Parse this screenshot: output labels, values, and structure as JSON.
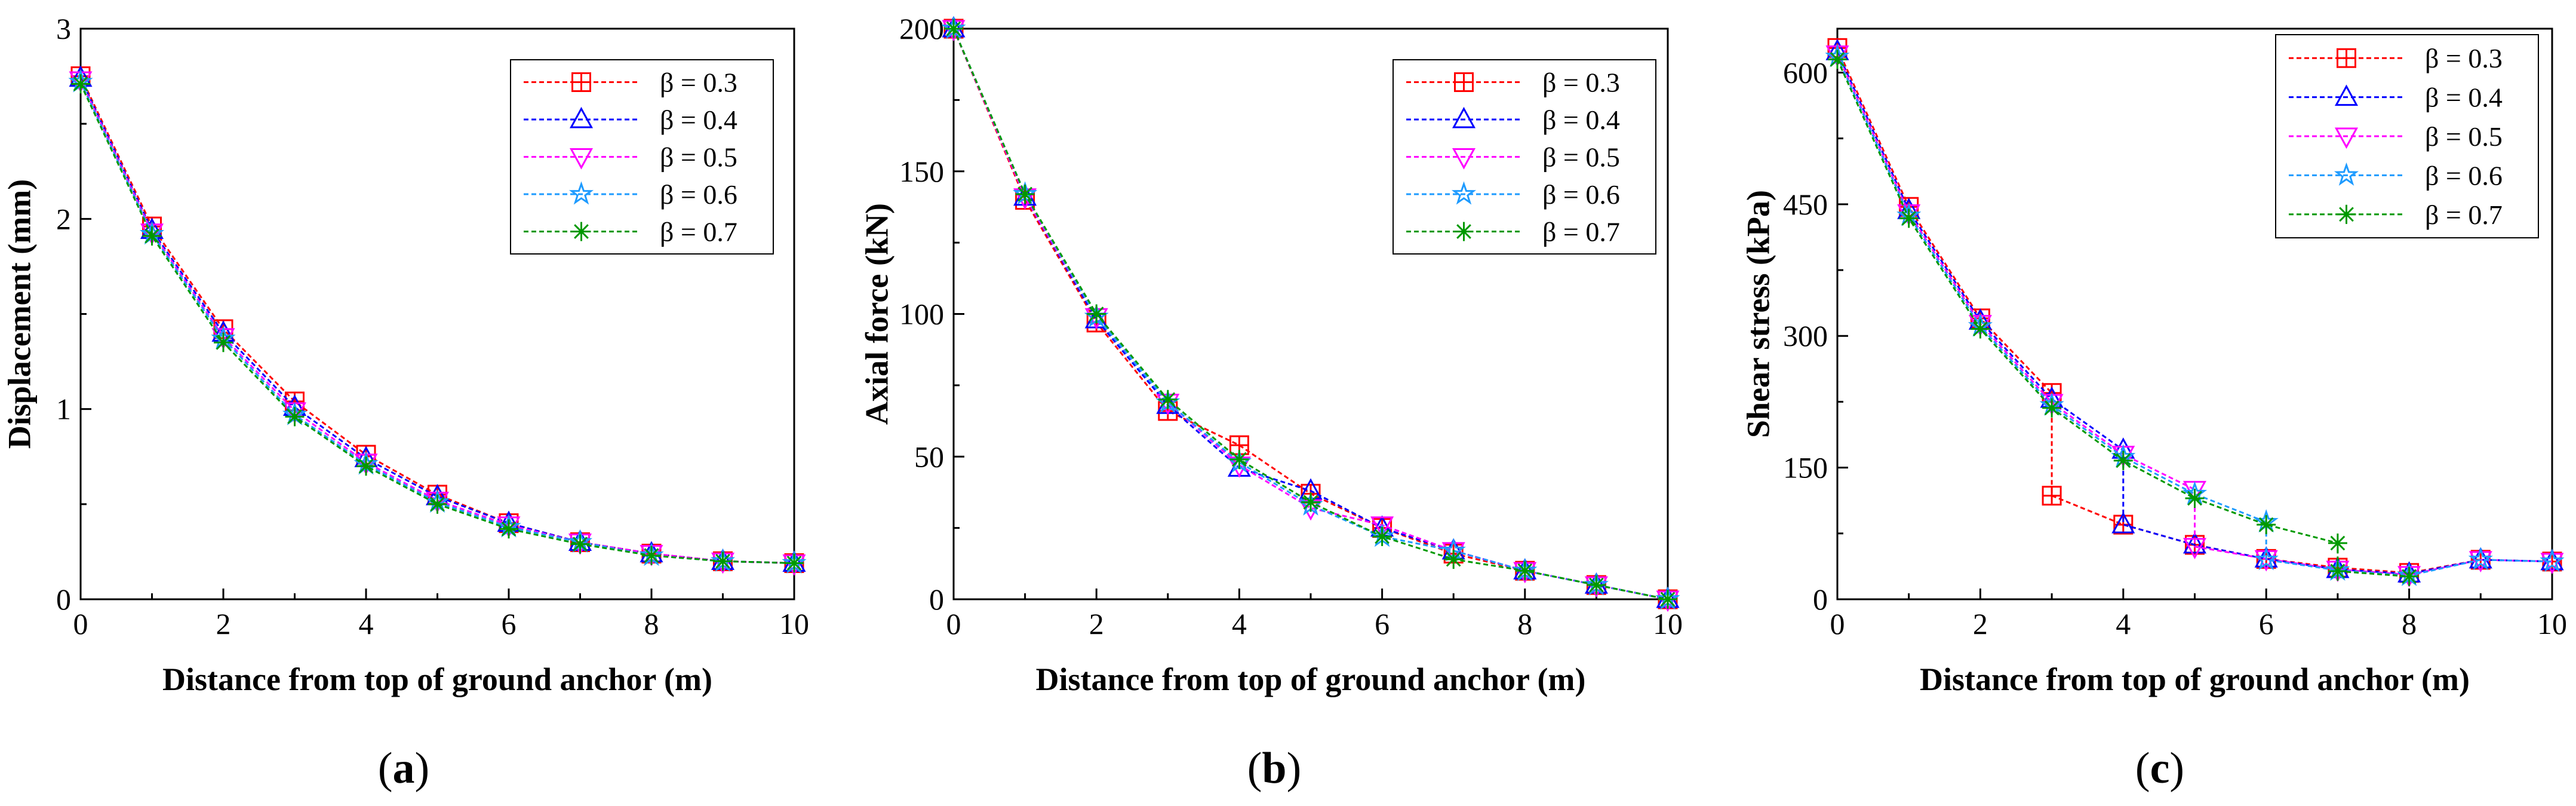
{
  "chart_data": [
    {
      "type": "line",
      "caption_open": "(",
      "caption_letter": "a",
      "caption_close": ")",
      "xlabel": "Distance from top of ground anchor (m)",
      "ylabel": "Displacement (mm)",
      "xlim": [
        0,
        10
      ],
      "ylim": [
        0,
        3
      ],
      "xticks": [
        0,
        2,
        4,
        6,
        8,
        10
      ],
      "xtick_labels": [
        "0",
        "2",
        "4",
        "6",
        "8",
        "10"
      ],
      "yticks": [
        0,
        1,
        2,
        3
      ],
      "ytick_labels": [
        "0",
        "1",
        "2",
        "3"
      ],
      "legend_position": "top-right",
      "series": [
        {
          "name": "β = 0.3",
          "color": "#ff0000",
          "marker": "square-plus",
          "points": [
            [
              0,
              2.75
            ],
            [
              1,
              1.96
            ],
            [
              2,
              1.42
            ],
            [
              3,
              1.04
            ],
            [
              4,
              0.76
            ],
            [
              5,
              0.55
            ],
            [
              6,
              0.4
            ],
            [
              7,
              0.3
            ],
            [
              8,
              0.24
            ],
            [
              9,
              0.2
            ],
            [
              10,
              0.19
            ]
          ]
        },
        {
          "name": "β = 0.4",
          "color": "#0000ff",
          "marker": "triangle-up",
          "points": [
            [
              0,
              2.74
            ],
            [
              1,
              1.94
            ],
            [
              2,
              1.4
            ],
            [
              3,
              1.01
            ],
            [
              4,
              0.74
            ],
            [
              5,
              0.54
            ],
            [
              6,
              0.4
            ],
            [
              7,
              0.3
            ],
            [
              8,
              0.24
            ],
            [
              9,
              0.2
            ],
            [
              10,
              0.19
            ]
          ]
        },
        {
          "name": "β = 0.5",
          "color": "#ff00ff",
          "marker": "triangle-down",
          "points": [
            [
              0,
              2.73
            ],
            [
              1,
              1.93
            ],
            [
              2,
              1.38
            ],
            [
              3,
              0.99
            ],
            [
              4,
              0.72
            ],
            [
              5,
              0.52
            ],
            [
              6,
              0.39
            ],
            [
              7,
              0.3
            ],
            [
              8,
              0.24
            ],
            [
              9,
              0.2
            ],
            [
              10,
              0.19
            ]
          ]
        },
        {
          "name": "β = 0.6",
          "color": "#1e9bff",
          "marker": "star",
          "points": [
            [
              0,
              2.72
            ],
            [
              1,
              1.92
            ],
            [
              2,
              1.37
            ],
            [
              3,
              0.97
            ],
            [
              4,
              0.71
            ],
            [
              5,
              0.51
            ],
            [
              6,
              0.38
            ],
            [
              7,
              0.3
            ],
            [
              8,
              0.23
            ],
            [
              9,
              0.2
            ],
            [
              10,
              0.19
            ]
          ]
        },
        {
          "name": "β = 0.7",
          "color": "#009900",
          "marker": "asterisk",
          "points": [
            [
              0,
              2.71
            ],
            [
              1,
              1.91
            ],
            [
              2,
              1.35
            ],
            [
              3,
              0.96
            ],
            [
              4,
              0.7
            ],
            [
              5,
              0.5
            ],
            [
              6,
              0.37
            ],
            [
              7,
              0.29
            ],
            [
              8,
              0.23
            ],
            [
              9,
              0.2
            ],
            [
              10,
              0.19
            ]
          ]
        }
      ]
    },
    {
      "type": "line",
      "caption_open": "(",
      "caption_letter": "b",
      "caption_close": ")",
      "xlabel": "Distance from top of ground anchor (m)",
      "ylabel": "Axial force (kN)",
      "xlim": [
        0,
        10
      ],
      "ylim": [
        0,
        200
      ],
      "xticks": [
        0,
        2,
        4,
        6,
        8,
        10
      ],
      "xtick_labels": [
        "0",
        "2",
        "4",
        "6",
        "8",
        "10"
      ],
      "yticks": [
        0,
        50,
        100,
        150,
        200
      ],
      "ytick_labels": [
        "0",
        "50",
        "100",
        "150",
        "200"
      ],
      "legend_position": "top-right",
      "series": [
        {
          "name": "β = 0.3",
          "color": "#ff0000",
          "marker": "square-plus",
          "points": [
            [
              0,
              200
            ],
            [
              1,
              140
            ],
            [
              2,
              97
            ],
            [
              3,
              66
            ],
            [
              4,
              54
            ],
            [
              5,
              37
            ],
            [
              6,
              25
            ],
            [
              7,
              16
            ],
            [
              8,
              10
            ],
            [
              9,
              5
            ],
            [
              10,
              0
            ]
          ]
        },
        {
          "name": "β = 0.4",
          "color": "#0000ff",
          "marker": "triangle-up",
          "points": [
            [
              0,
              200
            ],
            [
              1,
              141
            ],
            [
              2,
              98
            ],
            [
              3,
              68
            ],
            [
              4,
              46
            ],
            [
              5,
              38
            ],
            [
              6,
              25
            ],
            [
              7,
              17
            ],
            [
              8,
              10
            ],
            [
              9,
              5
            ],
            [
              10,
              0
            ]
          ]
        },
        {
          "name": "β = 0.5",
          "color": "#ff00ff",
          "marker": "triangle-down",
          "points": [
            [
              0,
              200
            ],
            [
              1,
              141
            ],
            [
              2,
              99
            ],
            [
              3,
              69
            ],
            [
              4,
              47
            ],
            [
              5,
              32
            ],
            [
              6,
              26
            ],
            [
              7,
              17
            ],
            [
              8,
              10
            ],
            [
              9,
              5
            ],
            [
              10,
              0
            ]
          ]
        },
        {
          "name": "β = 0.6",
          "color": "#1e9bff",
          "marker": "star",
          "points": [
            [
              0,
              200
            ],
            [
              1,
              142
            ],
            [
              2,
              99
            ],
            [
              3,
              69
            ],
            [
              4,
              48
            ],
            [
              5,
              33
            ],
            [
              6,
              22
            ],
            [
              7,
              17
            ],
            [
              8,
              10
            ],
            [
              9,
              5
            ],
            [
              10,
              0
            ]
          ]
        },
        {
          "name": "β = 0.7",
          "color": "#009900",
          "marker": "asterisk",
          "points": [
            [
              0,
              200
            ],
            [
              1,
              142
            ],
            [
              2,
              100
            ],
            [
              3,
              70
            ],
            [
              4,
              49
            ],
            [
              5,
              34
            ],
            [
              6,
              22
            ],
            [
              7,
              14
            ],
            [
              8,
              10
            ],
            [
              9,
              5
            ],
            [
              10,
              0
            ]
          ]
        }
      ]
    },
    {
      "type": "line",
      "caption_open": "(",
      "caption_letter": "c",
      "caption_close": ")",
      "xlabel": "Distance from top of ground anchor (m)",
      "ylabel": "Shear stress (kPa)",
      "xlim": [
        0,
        10
      ],
      "ylim": [
        0,
        650
      ],
      "xticks": [
        0,
        2,
        4,
        6,
        8,
        10
      ],
      "xtick_labels": [
        "0",
        "2",
        "4",
        "6",
        "8",
        "10"
      ],
      "yticks": [
        0,
        150,
        300,
        450,
        600
      ],
      "ytick_labels": [
        "0",
        "150",
        "300",
        "450",
        "600"
      ],
      "legend_position": "top-right",
      "series": [
        {
          "name": "β = 0.3",
          "color": "#ff0000",
          "marker": "square-plus",
          "points": [
            [
              0,
              628
            ],
            [
              1,
              447
            ],
            [
              2,
              320
            ],
            [
              3,
              235
            ],
            [
              3,
              118
            ],
            [
              4,
              85
            ],
            [
              5,
              62
            ],
            [
              6,
              46
            ],
            [
              7,
              36
            ],
            [
              8,
              30
            ],
            [
              9,
              45
            ],
            [
              10,
              43
            ]
          ]
        },
        {
          "name": "β = 0.4",
          "color": "#0000ff",
          "marker": "triangle-up",
          "points": [
            [
              0,
              624
            ],
            [
              1,
              443
            ],
            [
              2,
              317
            ],
            [
              3,
              228
            ],
            [
              4,
              170
            ],
            [
              4,
              85
            ],
            [
              5,
              62
            ],
            [
              6,
              46
            ],
            [
              7,
              34
            ],
            [
              8,
              29
            ],
            [
              9,
              45
            ],
            [
              10,
              43
            ]
          ]
        },
        {
          "name": "β = 0.5",
          "color": "#ff00ff",
          "marker": "triangle-down",
          "points": [
            [
              0,
              621
            ],
            [
              1,
              440
            ],
            [
              2,
              314
            ],
            [
              3,
              224
            ],
            [
              4,
              165
            ],
            [
              5,
              125
            ],
            [
              5,
              60
            ],
            [
              6,
              46
            ],
            [
              7,
              34
            ],
            [
              8,
              28
            ],
            [
              9,
              45
            ],
            [
              10,
              43
            ]
          ]
        },
        {
          "name": "β = 0.6",
          "color": "#1e9bff",
          "marker": "star",
          "points": [
            [
              0,
              618
            ],
            [
              1,
              437
            ],
            [
              2,
              311
            ],
            [
              3,
              221
            ],
            [
              4,
              162
            ],
            [
              5,
              120
            ],
            [
              6,
              88
            ],
            [
              6,
              45
            ],
            [
              7,
              33
            ],
            [
              8,
              27
            ],
            [
              9,
              45
            ],
            [
              10,
              43
            ]
          ]
        },
        {
          "name": "β = 0.7",
          "color": "#009900",
          "marker": "asterisk",
          "points": [
            [
              0,
              615
            ],
            [
              1,
              434
            ],
            [
              2,
              308
            ],
            [
              3,
              218
            ],
            [
              4,
              158
            ],
            [
              5,
              115
            ],
            [
              6,
              85
            ],
            [
              7,
              64
            ],
            [
              7,
              32
            ],
            [
              8,
              26
            ]
          ]
        }
      ]
    }
  ]
}
